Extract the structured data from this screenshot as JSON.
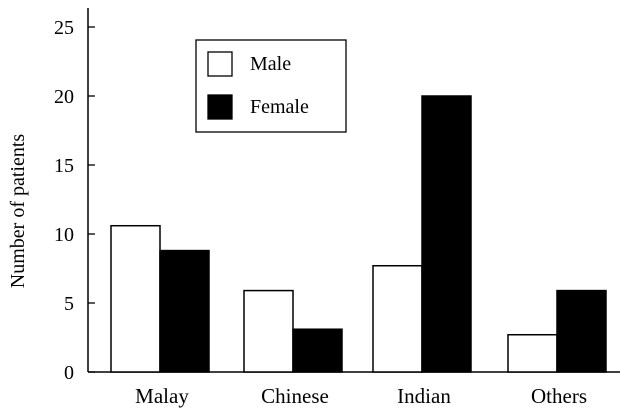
{
  "chart_data": {
    "type": "bar",
    "title": "",
    "xlabel": "",
    "ylabel": "Number of patients",
    "categories": [
      "Malay",
      "Chinese",
      "Indian",
      "Others"
    ],
    "series": [
      {
        "name": "Male",
        "values": [
          10.6,
          5.9,
          7.7,
          2.7
        ],
        "color": "#ffffff"
      },
      {
        "name": "Female",
        "values": [
          8.8,
          3.1,
          20.0,
          5.9
        ],
        "color": "#000000"
      }
    ],
    "ylim": [
      0,
      25
    ],
    "yticks": [
      0,
      5,
      10,
      15,
      20,
      25
    ],
    "grid": false,
    "legend_position": "top-left"
  }
}
